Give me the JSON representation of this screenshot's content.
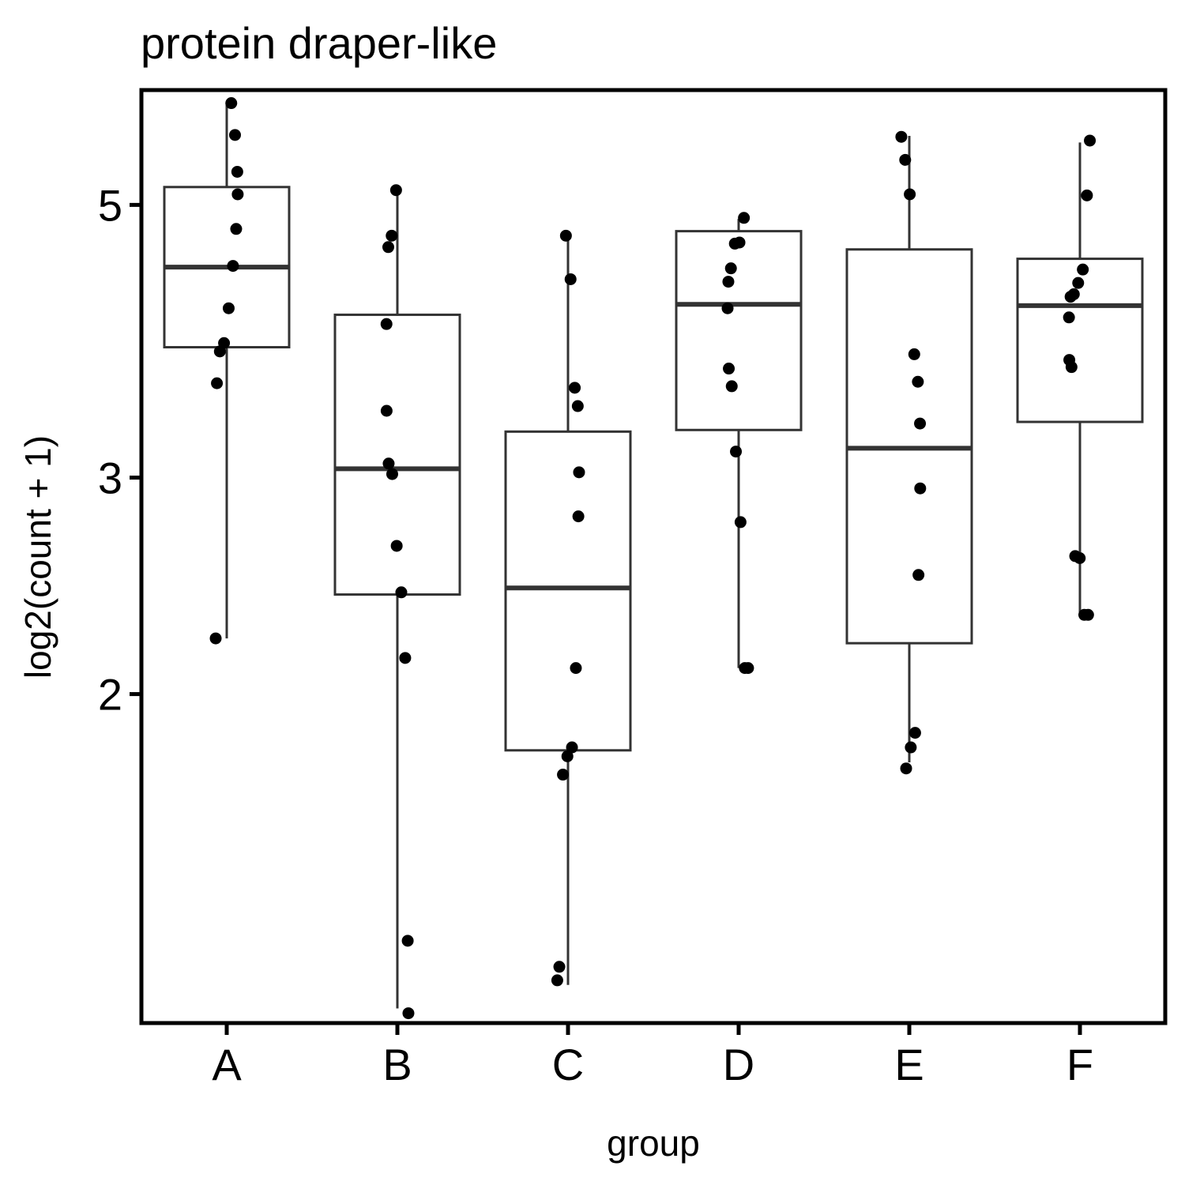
{
  "chart_data": {
    "type": "box",
    "title": "protein draper-like",
    "xlabel": "group",
    "ylabel": "log2(count + 1)",
    "y_scale": "log",
    "ylim": [
      1.08,
      6.2
    ],
    "yticks": [
      2,
      3,
      5
    ],
    "grid": false,
    "legend": "none",
    "categories": [
      "A",
      "B",
      "C",
      "D",
      "E",
      "F"
    ],
    "boxes": [
      {
        "group": "A",
        "whisker_low": 2.22,
        "q1": 3.83,
        "median": 4.45,
        "q3": 5.17,
        "whisker_high": 6.03
      },
      {
        "group": "B",
        "whisker_low": 1.11,
        "q1": 2.41,
        "median": 3.05,
        "q3": 4.07,
        "whisker_high": 5.12
      },
      {
        "group": "C",
        "whisker_low": 1.16,
        "q1": 1.8,
        "median": 2.44,
        "q3": 3.27,
        "whisker_high": 4.69
      },
      {
        "group": "D",
        "whisker_low": 2.1,
        "q1": 3.28,
        "median": 4.15,
        "q3": 4.76,
        "whisker_high": 4.87
      },
      {
        "group": "E",
        "whisker_low": 1.76,
        "q1": 2.2,
        "median": 3.17,
        "q3": 4.6,
        "whisker_high": 5.69
      },
      {
        "group": "F",
        "whisker_low": 2.33,
        "q1": 3.33,
        "median": 4.14,
        "q3": 4.52,
        "whisker_high": 5.62
      }
    ],
    "points": [
      {
        "group": "A",
        "values": [
          6.05,
          5.7,
          5.32,
          5.1,
          4.78,
          4.46,
          4.12,
          3.86,
          3.8,
          3.58,
          2.22
        ]
      },
      {
        "group": "B",
        "values": [
          5.14,
          4.72,
          4.62,
          4.0,
          3.4,
          3.08,
          3.02,
          2.64,
          2.42,
          2.14,
          1.26,
          1.1
        ]
      },
      {
        "group": "C",
        "values": [
          4.72,
          4.35,
          3.55,
          3.43,
          3.03,
          2.79,
          2.1,
          1.81,
          1.78,
          1.72,
          1.2,
          1.17
        ]
      },
      {
        "group": "D",
        "values": [
          4.88,
          4.66,
          4.65,
          4.44,
          4.33,
          4.12,
          3.68,
          3.56,
          3.15,
          2.76,
          2.1,
          2.1
        ]
      },
      {
        "group": "E",
        "values": [
          5.68,
          5.44,
          5.1,
          3.78,
          3.59,
          3.32,
          2.94,
          2.5,
          1.86,
          1.81,
          1.74
        ]
      },
      {
        "group": "F",
        "values": [
          5.64,
          5.09,
          4.43,
          4.32,
          4.23,
          4.21,
          4.05,
          3.74,
          3.69,
          2.59,
          2.58,
          2.32,
          2.32
        ]
      }
    ]
  }
}
